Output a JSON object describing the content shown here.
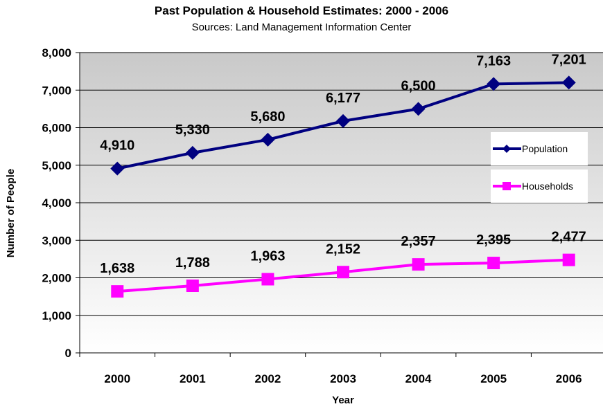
{
  "chart_data": {
    "type": "line",
    "title": "Past Population & Household Estimates:  2000 - 2006",
    "subtitle": "Sources:  Land Management Information Center",
    "xlabel": "Year",
    "ylabel": "Number of People",
    "categories": [
      "2000",
      "2001",
      "2002",
      "2003",
      "2004",
      "2005",
      "2006"
    ],
    "ylim": [
      0,
      8000
    ],
    "yticks": [
      "0",
      "1,000",
      "2,000",
      "3,000",
      "4,000",
      "5,000",
      "6,000",
      "7,000",
      "8,000"
    ],
    "grid": true,
    "legend_position": "right",
    "series": [
      {
        "name": "Population",
        "color": "#000080",
        "marker": "diamond",
        "values": [
          4910,
          5330,
          5680,
          6177,
          6500,
          7163,
          7201
        ],
        "labels": [
          "4,910",
          "5,330",
          "5,680",
          "6,177",
          "6,500",
          "7,163",
          "7,201"
        ]
      },
      {
        "name": "Households",
        "color": "#ff00ff",
        "marker": "square",
        "values": [
          1638,
          1788,
          1963,
          2152,
          2357,
          2395,
          2477
        ],
        "labels": [
          "1,638",
          "1,788",
          "1,963",
          "2,152",
          "2,357",
          "2,395",
          "2,477"
        ]
      }
    ]
  }
}
